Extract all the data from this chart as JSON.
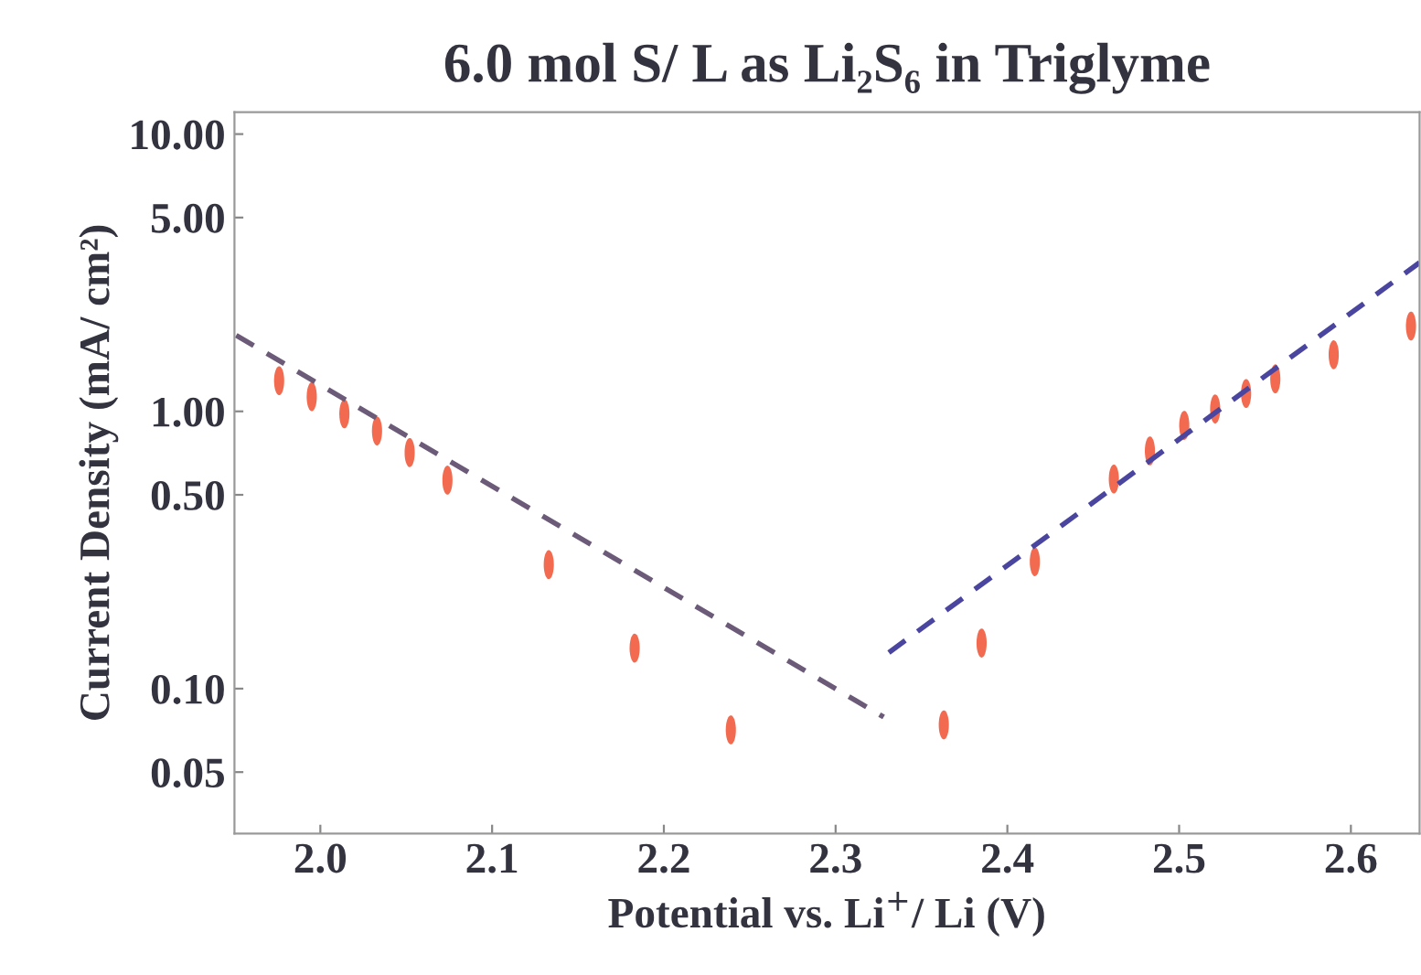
{
  "chart_data": {
    "type": "scatter",
    "title": "6.0 mol S/ L as Li₂S₆ in Triglyme",
    "xlabel": "Potential vs. Li$^{+}$/ Li (V)",
    "ylabel": "Current Density (mA/ cm²)",
    "log": "y",
    "xlim": [
      1.95,
      2.64
    ],
    "ylim": [
      0.03,
      12
    ],
    "xticks": [
      {
        "value": 2.0,
        "label": "2.0"
      },
      {
        "value": 2.1,
        "label": "2.1"
      },
      {
        "value": 2.2,
        "label": "2.2"
      },
      {
        "value": 2.3,
        "label": "2.3"
      },
      {
        "value": 2.4,
        "label": "2.4"
      },
      {
        "value": 2.5,
        "label": "2.5"
      },
      {
        "value": 2.6,
        "label": "2.6"
      }
    ],
    "yticks": [
      {
        "value": 0.05,
        "label": "0.05"
      },
      {
        "value": 0.1,
        "label": "0.10"
      },
      {
        "value": 0.5,
        "label": "0.50"
      },
      {
        "value": 1,
        "label": "1.00"
      },
      {
        "value": 5,
        "label": "5.00"
      },
      {
        "value": 10,
        "label": "10.00"
      }
    ],
    "grid": false,
    "legend": false,
    "marker": "circle",
    "series": [
      {
        "color": "#f26a4f",
        "x": [
          1.976,
          1.995,
          2.014,
          2.033,
          2.052,
          2.074,
          2.133,
          2.183,
          2.239,
          2.363,
          2.385,
          2.416,
          2.462,
          2.483,
          2.503,
          2.521,
          2.539,
          2.556,
          2.59,
          2.635
        ],
        "values": [
          1.29,
          1.13,
          0.98,
          0.85,
          0.71,
          0.565,
          0.28,
          0.14,
          0.071,
          0.074,
          0.146,
          0.287,
          0.57,
          0.72,
          0.89,
          1.02,
          1.16,
          1.31,
          1.6,
          2.03
        ]
      },
      {
        "type": "line",
        "color": "#6b5a78",
        "line_style": "dashed",
        "marker": "none",
        "x": [
          1.951,
          2.328
        ],
        "values": [
          1.88,
          0.079
        ]
      },
      {
        "type": "line",
        "color": "#4a46a0",
        "line_style": "dashed",
        "marker": "none",
        "x": [
          2.331,
          2.64
        ],
        "values": [
          0.135,
          3.44
        ]
      }
    ]
  }
}
